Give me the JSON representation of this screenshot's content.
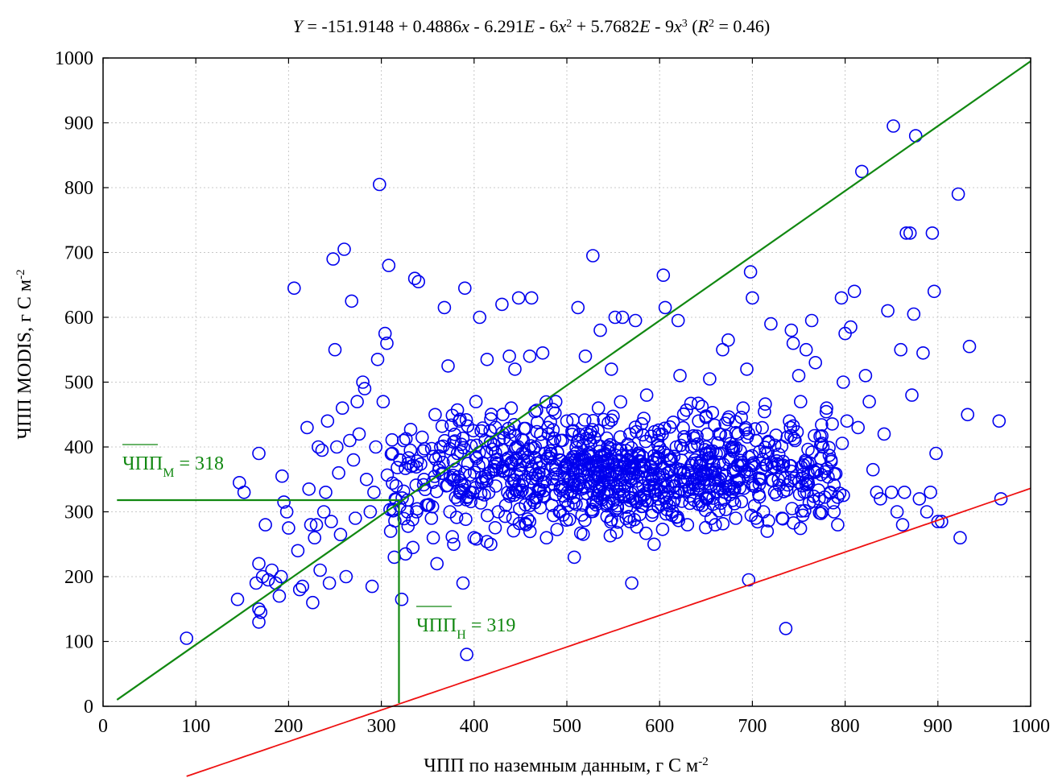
{
  "chart_data": {
    "type": "scatter",
    "equation": {
      "y_var": "Y",
      "prefix": " = -151.9148 + 0.4886",
      "x1": "x",
      "t2": " - 6.291",
      "e2": "E",
      "t3": " - 6",
      "x2": "x",
      "sup2": "2",
      "t4": " + 5.7682",
      "e3": "E",
      "t5": " - 9",
      "x3": "x",
      "sup3": "3",
      "t6": " (",
      "r": "R",
      "rsup": "2",
      "t7": " = 0.46)"
    },
    "xlabel": {
      "text": "ЧПП по наземным данным, г С м",
      "sup": "-2"
    },
    "ylabel": {
      "text": "ЧПП MODIS, г С м",
      "sup": "-2"
    },
    "xlim": [
      0,
      1000
    ],
    "ylim": [
      0,
      1000
    ],
    "xticks": [
      "0",
      "100",
      "200",
      "300",
      "400",
      "500",
      "600",
      "700",
      "800",
      "900",
      "1000"
    ],
    "yticks": [
      "0",
      "100",
      "200",
      "300",
      "400",
      "500",
      "600",
      "700",
      "800",
      "900",
      "1000"
    ],
    "grid": true,
    "fit": {
      "intercept": -151.9148,
      "b1": 0.4886,
      "b2": -6.291e-06,
      "b3": 5.7682e-09,
      "x_range": [
        90,
        1000
      ],
      "color": "#ee1111"
    },
    "identity_line": {
      "from": [
        15,
        10
      ],
      "to": [
        1000,
        995
      ],
      "color": "#118811"
    },
    "mean_lines": {
      "modis_mean": 318,
      "ground_mean": 319,
      "color": "#118811"
    },
    "annotations": {
      "modis": {
        "base": "ЧПП",
        "sub": "М",
        "rest": " = 318"
      },
      "ground": {
        "base": "ЧПП",
        "sub": "Н",
        "rest": " = 319"
      }
    },
    "marker_color": "#0000ee",
    "points": [
      [
        90,
        105
      ],
      [
        145,
        165
      ],
      [
        147,
        345
      ],
      [
        152,
        330
      ],
      [
        168,
        390
      ],
      [
        168,
        130
      ],
      [
        170,
        145
      ],
      [
        168,
        150
      ],
      [
        165,
        190
      ],
      [
        168,
        220
      ],
      [
        172,
        200
      ],
      [
        175,
        280
      ],
      [
        178,
        195
      ],
      [
        182,
        210
      ],
      [
        186,
        190
      ],
      [
        190,
        170
      ],
      [
        192,
        200
      ],
      [
        193,
        355
      ],
      [
        195,
        315
      ],
      [
        198,
        300
      ],
      [
        200,
        275
      ],
      [
        206,
        645
      ],
      [
        210,
        240
      ],
      [
        212,
        180
      ],
      [
        215,
        185
      ],
      [
        220,
        430
      ],
      [
        222,
        335
      ],
      [
        224,
        280
      ],
      [
        226,
        160
      ],
      [
        228,
        260
      ],
      [
        230,
        280
      ],
      [
        232,
        400
      ],
      [
        234,
        210
      ],
      [
        236,
        395
      ],
      [
        238,
        300
      ],
      [
        240,
        330
      ],
      [
        242,
        440
      ],
      [
        244,
        190
      ],
      [
        246,
        285
      ],
      [
        248,
        690
      ],
      [
        250,
        550
      ],
      [
        252,
        400
      ],
      [
        254,
        360
      ],
      [
        256,
        265
      ],
      [
        258,
        460
      ],
      [
        260,
        705
      ],
      [
        262,
        200
      ],
      [
        266,
        410
      ],
      [
        268,
        625
      ],
      [
        270,
        380
      ],
      [
        272,
        290
      ],
      [
        274,
        470
      ],
      [
        276,
        420
      ],
      [
        280,
        500
      ],
      [
        282,
        490
      ],
      [
        284,
        350
      ],
      [
        288,
        300
      ],
      [
        290,
        185
      ],
      [
        292,
        330
      ],
      [
        294,
        400
      ],
      [
        296,
        535
      ],
      [
        298,
        805
      ],
      [
        302,
        470
      ],
      [
        304,
        575
      ],
      [
        306,
        560
      ],
      [
        308,
        680
      ],
      [
        310,
        270
      ],
      [
        312,
        390
      ],
      [
        314,
        230
      ],
      [
        316,
        340
      ],
      [
        320,
        380
      ],
      [
        322,
        165
      ],
      [
        324,
        410
      ],
      [
        326,
        235
      ],
      [
        328,
        300
      ],
      [
        332,
        370
      ],
      [
        334,
        245
      ],
      [
        336,
        660
      ],
      [
        338,
        300
      ],
      [
        340,
        655
      ],
      [
        344,
        415
      ],
      [
        346,
        350
      ],
      [
        350,
        310
      ],
      [
        354,
        290
      ],
      [
        356,
        260
      ],
      [
        358,
        450
      ],
      [
        360,
        220
      ],
      [
        364,
        400
      ],
      [
        368,
        615
      ],
      [
        370,
        340
      ],
      [
        372,
        525
      ],
      [
        374,
        300
      ],
      [
        378,
        250
      ],
      [
        382,
        390
      ],
      [
        384,
        440
      ],
      [
        386,
        330
      ],
      [
        388,
        190
      ],
      [
        390,
        645
      ],
      [
        392,
        80
      ],
      [
        396,
        330
      ],
      [
        400,
        260
      ],
      [
        402,
        470
      ],
      [
        406,
        600
      ],
      [
        408,
        345
      ],
      [
        412,
        410
      ],
      [
        414,
        535
      ],
      [
        418,
        250
      ],
      [
        422,
        370
      ],
      [
        426,
        300
      ],
      [
        430,
        620
      ],
      [
        434,
        310
      ],
      [
        438,
        540
      ],
      [
        440,
        460
      ],
      [
        444,
        520
      ],
      [
        448,
        630
      ],
      [
        450,
        330
      ],
      [
        452,
        390
      ],
      [
        456,
        280
      ],
      [
        460,
        540
      ],
      [
        462,
        630
      ],
      [
        466,
        400
      ],
      [
        470,
        360
      ],
      [
        474,
        545
      ],
      [
        478,
        260
      ],
      [
        480,
        420
      ],
      [
        484,
        310
      ],
      [
        488,
        470
      ],
      [
        492,
        380
      ],
      [
        496,
        295
      ],
      [
        500,
        440
      ],
      [
        504,
        350
      ],
      [
        508,
        230
      ],
      [
        512,
        615
      ],
      [
        516,
        380
      ],
      [
        520,
        540
      ],
      [
        524,
        410
      ],
      [
        528,
        695
      ],
      [
        530,
        360
      ],
      [
        534,
        460
      ],
      [
        536,
        580
      ],
      [
        540,
        330
      ],
      [
        544,
        400
      ],
      [
        548,
        520
      ],
      [
        552,
        600
      ],
      [
        556,
        380
      ],
      [
        560,
        600
      ],
      [
        564,
        290
      ],
      [
        568,
        420
      ],
      [
        570,
        190
      ],
      [
        574,
        595
      ],
      [
        578,
        390
      ],
      [
        582,
        340
      ],
      [
        586,
        480
      ],
      [
        590,
        370
      ],
      [
        594,
        250
      ],
      [
        598,
        410
      ],
      [
        602,
        330
      ],
      [
        604,
        665
      ],
      [
        606,
        615
      ],
      [
        610,
        380
      ],
      [
        614,
        300
      ],
      [
        618,
        400
      ],
      [
        620,
        595
      ],
      [
        622,
        510
      ],
      [
        626,
        360
      ],
      [
        630,
        280
      ],
      [
        634,
        400
      ],
      [
        638,
        350
      ],
      [
        642,
        440
      ],
      [
        646,
        310
      ],
      [
        650,
        390
      ],
      [
        654,
        505
      ],
      [
        656,
        360
      ],
      [
        660,
        280
      ],
      [
        664,
        420
      ],
      [
        668,
        550
      ],
      [
        670,
        330
      ],
      [
        674,
        565
      ],
      [
        678,
        400
      ],
      [
        682,
        290
      ],
      [
        686,
        350
      ],
      [
        690,
        460
      ],
      [
        694,
        520
      ],
      [
        696,
        195
      ],
      [
        698,
        670
      ],
      [
        700,
        630
      ],
      [
        704,
        410
      ],
      [
        708,
        350
      ],
      [
        712,
        300
      ],
      [
        716,
        270
      ],
      [
        720,
        590
      ],
      [
        724,
        330
      ],
      [
        728,
        350
      ],
      [
        732,
        290
      ],
      [
        736,
        120
      ],
      [
        740,
        440
      ],
      [
        742,
        580
      ],
      [
        744,
        560
      ],
      [
        746,
        410
      ],
      [
        750,
        510
      ],
      [
        752,
        470
      ],
      [
        756,
        330
      ],
      [
        758,
        550
      ],
      [
        760,
        360
      ],
      [
        764,
        595
      ],
      [
        768,
        530
      ],
      [
        772,
        320
      ],
      [
        776,
        400
      ],
      [
        780,
        460
      ],
      [
        784,
        330
      ],
      [
        788,
        300
      ],
      [
        792,
        280
      ],
      [
        796,
        630
      ],
      [
        798,
        500
      ],
      [
        800,
        575
      ],
      [
        802,
        440
      ],
      [
        806,
        585
      ],
      [
        810,
        640
      ],
      [
        814,
        430
      ],
      [
        818,
        825
      ],
      [
        822,
        510
      ],
      [
        826,
        470
      ],
      [
        830,
        365
      ],
      [
        834,
        330
      ],
      [
        838,
        320
      ],
      [
        842,
        420
      ],
      [
        846,
        610
      ],
      [
        850,
        330
      ],
      [
        852,
        895
      ],
      [
        856,
        300
      ],
      [
        860,
        550
      ],
      [
        862,
        280
      ],
      [
        864,
        330
      ],
      [
        866,
        730
      ],
      [
        870,
        730
      ],
      [
        872,
        480
      ],
      [
        874,
        605
      ],
      [
        876,
        880
      ],
      [
        880,
        320
      ],
      [
        884,
        545
      ],
      [
        888,
        300
      ],
      [
        892,
        330
      ],
      [
        894,
        730
      ],
      [
        896,
        640
      ],
      [
        898,
        390
      ],
      [
        900,
        285
      ],
      [
        904,
        285
      ],
      [
        922,
        790
      ],
      [
        924,
        260
      ],
      [
        932,
        450
      ],
      [
        934,
        555
      ],
      [
        966,
        440
      ],
      [
        968,
        320
      ]
    ],
    "cluster": {
      "seed": 20240501,
      "count": 900,
      "x_mean": 560,
      "x_sd": 120,
      "y_mean": 365,
      "y_sd": 42
    }
  }
}
